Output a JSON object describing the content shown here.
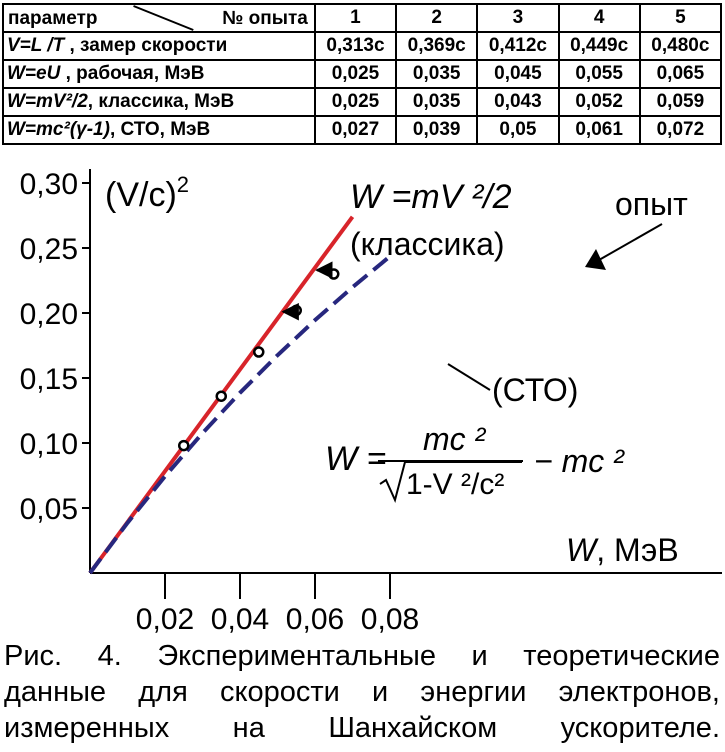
{
  "table": {
    "header_param": "параметр",
    "header_run": "№ опыта",
    "runs": [
      "1",
      "2",
      "3",
      "4",
      "5"
    ],
    "rows": [
      {
        "label_formula": "V=L /T",
        "label_text": " , замер скорости",
        "values": [
          "0,313c",
          "0,369c",
          "0,412c",
          "0,449c",
          "0,480c"
        ]
      },
      {
        "label_formula": "W=eU",
        "label_text": " , рабочая, МэВ",
        "values": [
          "0,025",
          "0,035",
          "0,045",
          "0,055",
          "0,065"
        ]
      },
      {
        "label_formula": "W=mV²/2",
        "label_text": ", классика, МэВ",
        "values": [
          "0,025",
          "0,035",
          "0,043",
          "0,052",
          "0,059"
        ]
      },
      {
        "label_formula": "W=mc²(γ-1)",
        "label_text": ", СТО, МэВ",
        "values": [
          "0,027",
          "0,039",
          "0,05",
          "0,061",
          "0,072"
        ]
      }
    ]
  },
  "chart_data": {
    "type": "line",
    "xlabel_italic": "W",
    "xlabel_unit": ", МэВ",
    "ylabel": "(V/c)",
    "ylabel_exp": "2",
    "xlim": [
      0,
      0.08
    ],
    "ylim": [
      0,
      0.3
    ],
    "x_ticks": [
      {
        "value": 0.02,
        "label": "0,02"
      },
      {
        "value": 0.04,
        "label": "0,04"
      },
      {
        "value": 0.06,
        "label": "0,06"
      },
      {
        "value": 0.08,
        "label": "0,08"
      }
    ],
    "y_ticks": [
      {
        "value": 0.05,
        "label": "0,05"
      },
      {
        "value": 0.1,
        "label": "0,10"
      },
      {
        "value": 0.15,
        "label": "0,15"
      },
      {
        "value": 0.2,
        "label": "0,20"
      },
      {
        "value": 0.25,
        "label": "0,25"
      },
      {
        "value": 0.3,
        "label": "0,30"
      }
    ],
    "series": [
      {
        "kind": "classical",
        "color": "#d8242a",
        "style": "solid",
        "x": [
          0,
          0.07
        ],
        "y": [
          0,
          0.274
        ]
      },
      {
        "kind": "relativistic",
        "color": "#27277e",
        "style": "dashed",
        "x": [
          0,
          0.01,
          0.02,
          0.03,
          0.04,
          0.05,
          0.06,
          0.07,
          0.08
        ],
        "y": [
          0,
          0.0386,
          0.0744,
          0.1076,
          0.1386,
          0.1675,
          0.1945,
          0.2198,
          0.2436
        ]
      }
    ],
    "points": [
      {
        "x": 0.025,
        "y": 0.098
      },
      {
        "x": 0.035,
        "y": 0.136
      },
      {
        "x": 0.045,
        "y": 0.17
      },
      {
        "x": 0.055,
        "y": 0.202
      },
      {
        "x": 0.065,
        "y": 0.23
      }
    ],
    "arrows": [
      {
        "from_x": 0.055,
        "to_x": 0.0515,
        "y": 0.201
      },
      {
        "from_x": 0.065,
        "to_x": 0.0605,
        "y": 0.233
      }
    ],
    "annotations": {
      "classic_formula": "W =mV ²/2",
      "classic_label": "(классика)",
      "experiment_label": "опыт",
      "sto_label": "(СТО)",
      "sto_formula_lhs": "W =",
      "sto_formula_num": "mc ²",
      "sto_formula_den": "1-V ²/c²",
      "sto_formula_rhs": "− mc ²"
    }
  },
  "caption": [
    "Рис. 4. Экспериментальные и теоретические",
    "данные для скорости и энергии электронов,",
    "измеренных на Шанхайском ускорителе."
  ]
}
